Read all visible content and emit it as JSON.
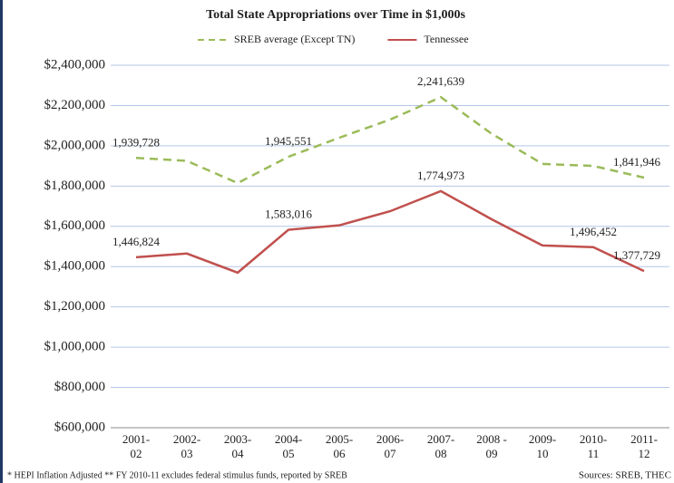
{
  "chart_data": {
    "type": "line",
    "title": "Total State Appropriations over Time in $1,000s",
    "categories": [
      "2001-\n02",
      "2002-\n03",
      "2003-\n04",
      "2004-\n05",
      "2005-\n06",
      "2006-\n07",
      "2007-\n08",
      "2008 -\n09",
      "2009-\n10",
      "2010-\n11",
      "2011-\n12"
    ],
    "series": [
      {
        "name": "SREB average (Except TN)",
        "color": "#9bbb59",
        "dashed": true,
        "values": [
          1939728,
          1925000,
          1815000,
          1945551,
          2040000,
          2130000,
          2241639,
          2060000,
          1910000,
          1900000,
          1841946
        ],
        "value_labels": [
          "1,939,728",
          null,
          null,
          "1,945,551",
          null,
          null,
          "2,241,639",
          null,
          null,
          null,
          "1,841,946"
        ]
      },
      {
        "name": "Tennessee",
        "color": "#c0504d",
        "dashed": false,
        "values": [
          1446824,
          1465000,
          1370000,
          1583016,
          1605000,
          1675000,
          1774973,
          1635000,
          1505000,
          1496452,
          1377729
        ],
        "value_labels": [
          "1,446,824",
          null,
          null,
          "1,583,016",
          null,
          null,
          "1,774,973",
          null,
          null,
          "1,496,452",
          "1,377,729"
        ]
      }
    ],
    "ylim": [
      600000,
      2400000
    ],
    "yticks": [
      {
        "value": 600000,
        "label": "$600,000"
      },
      {
        "value": 800000,
        "label": "$800,000"
      },
      {
        "value": 1000000,
        "label": "$1,000,000"
      },
      {
        "value": 1200000,
        "label": "$1,200,000"
      },
      {
        "value": 1400000,
        "label": "$1,400,000"
      },
      {
        "value": 1600000,
        "label": "$1,600,000"
      },
      {
        "value": 1800000,
        "label": "$1,800,000"
      },
      {
        "value": 2000000,
        "label": "$2,000,000"
      },
      {
        "value": 2200000,
        "label": "$2,200,000"
      },
      {
        "value": 2400000,
        "label": "$2,400,000"
      }
    ],
    "grid": true,
    "legend": "top",
    "notes": [
      "* HEPI Inflation Adjusted   ** FY 2010-11 excludes federal stimulus funds, reported by SREB",
      "Sources: SREB, THEC"
    ]
  }
}
